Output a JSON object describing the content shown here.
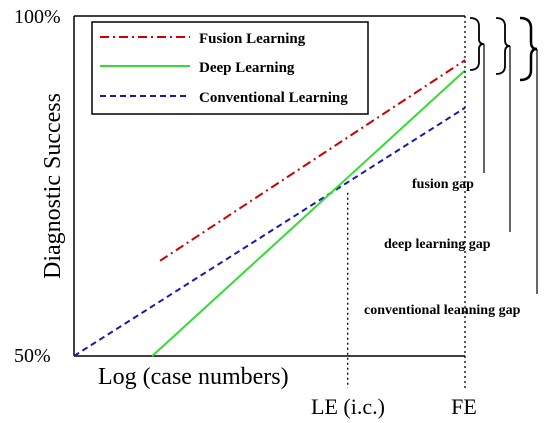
{
  "chart_data": {
    "type": "line",
    "ylabel": "Diagnostic Success",
    "xlabel": "Log (case numbers)",
    "ylim": [
      50,
      100
    ],
    "xlim": [
      0,
      100
    ],
    "y_tick_labels": [
      "100%",
      "50%"
    ],
    "x_markers": [
      {
        "label": "LE (i.c.)",
        "x": 70
      },
      {
        "label": "FE",
        "x": 100
      }
    ],
    "legend_position": "top-left",
    "series": [
      {
        "name": "Fusion Learning",
        "color": "#cc0000",
        "style": "dashdot",
        "points": [
          [
            22,
            64
          ],
          [
            100,
            93.5
          ]
        ]
      },
      {
        "name": "Deep Learning",
        "color": "#33dd33",
        "style": "solid",
        "points": [
          [
            20,
            50
          ],
          [
            100,
            92
          ]
        ]
      },
      {
        "name": "Conventional Learning",
        "color": "#1a1aaa",
        "style": "dashed",
        "points": [
          [
            0,
            50
          ],
          [
            100,
            86.5
          ]
        ]
      }
    ],
    "gap_annotations": [
      "fusion gap",
      "deep learning gap",
      "conventional leanning gap"
    ]
  }
}
